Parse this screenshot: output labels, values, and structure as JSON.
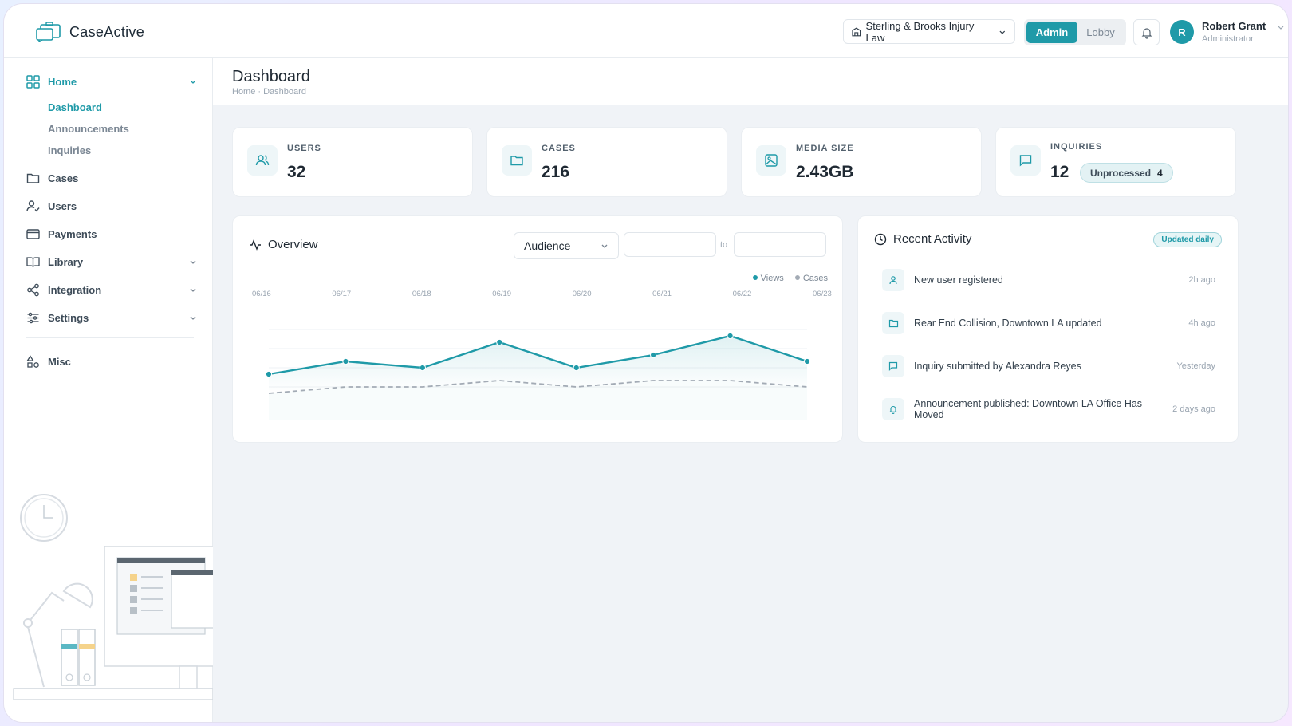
{
  "app": {
    "name": "CaseActive"
  },
  "header": {
    "firm_name": "Sterling & Brooks Injury Law",
    "mode_admin": "Admin",
    "mode_lobby": "Lobby",
    "user": {
      "initial": "R",
      "name": "Robert Grant",
      "role": "Administrator"
    }
  },
  "sidebar": {
    "home": "Home",
    "home_sub": [
      "Dashboard",
      "Announcements",
      "Inquiries"
    ],
    "cases": "Cases",
    "users": "Users",
    "payments": "Payments",
    "library": "Library",
    "integration": "Integration",
    "settings": "Settings",
    "misc": "Misc"
  },
  "page": {
    "title": "Dashboard",
    "breadcrumb": "Home · Dashboard"
  },
  "stats": {
    "users": {
      "label": "USERS",
      "value": "32"
    },
    "cases": {
      "label": "CASES",
      "value": "216"
    },
    "media": {
      "label": "MEDIA SIZE",
      "value": "2.43GB"
    },
    "inquiries": {
      "label": "INQUIRIES",
      "value": "12",
      "badge_label": "Unprocessed",
      "badge_count": "4"
    }
  },
  "overview": {
    "title": "Overview",
    "audience_select": "Audience",
    "date_from": "",
    "date_to": "",
    "to_label": "to",
    "legend_views": "Views",
    "legend_cases": "Cases"
  },
  "chart_data": {
    "type": "line",
    "x": [
      "06/16",
      "06/17",
      "06/18",
      "06/19",
      "06/20",
      "06/21",
      "06/22",
      "06/23"
    ],
    "series": [
      {
        "name": "Views",
        "values": [
          35,
          45,
          40,
          60,
          40,
          50,
          65,
          45
        ]
      },
      {
        "name": "Cases",
        "values": [
          20,
          25,
          25,
          30,
          25,
          30,
          30,
          25
        ]
      }
    ],
    "ylim": [
      0,
      100
    ],
    "grid": true,
    "legend": "top-right"
  },
  "activity": {
    "title": "Recent Activity",
    "badge": "Updated daily",
    "items": [
      {
        "icon": "user-icon",
        "text": "New user registered",
        "time": "2h ago"
      },
      {
        "icon": "folder-icon",
        "text": "Rear End Collision, Downtown LA updated",
        "time": "4h ago"
      },
      {
        "icon": "message-icon",
        "text": "Inquiry submitted by Alexandra Reyes",
        "time": "Yesterday"
      },
      {
        "icon": "bell-icon",
        "text": "Announcement published: Downtown LA Office Has Moved",
        "time": "2 days ago"
      }
    ]
  },
  "colors": {
    "accent": "#1f9aa8",
    "views_line": "#1f9aa8",
    "cases_line": "#a3abb5"
  }
}
